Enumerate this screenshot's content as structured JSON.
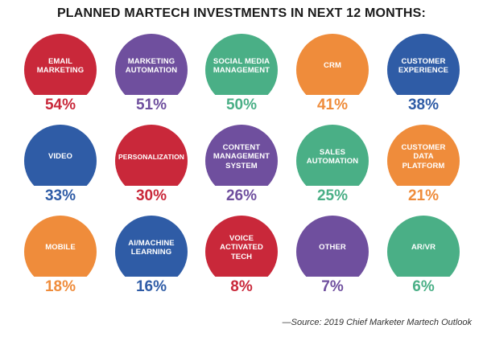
{
  "title": "PLANNED MARTECH INVESTMENTS IN NEXT 12 MONTHS:",
  "source": "—Source: 2019 Chief Marketer Martech Outlook",
  "colors": {
    "red": "#c9283a",
    "purple": "#6f4f9e",
    "green": "#4aaf86",
    "orange": "#ef8c3b",
    "blue": "#2f5ca6"
  },
  "items": [
    {
      "label": "EMAIL\nMARKETING",
      "percent": "54%",
      "color": "#c9283a"
    },
    {
      "label": "MARKETING\nAUTOMATION",
      "percent": "51%",
      "color": "#6f4f9e"
    },
    {
      "label": "SOCIAL MEDIA\nMANAGEMENT",
      "percent": "50%",
      "color": "#4aaf86"
    },
    {
      "label": "CRM",
      "percent": "41%",
      "color": "#ef8c3b"
    },
    {
      "label": "CUSTOMER\nEXPERIENCE",
      "percent": "38%",
      "color": "#2f5ca6"
    },
    {
      "label": "VIDEO",
      "percent": "33%",
      "color": "#2f5ca6"
    },
    {
      "label": "PERSONALIZATION",
      "percent": "30%",
      "color": "#c9283a"
    },
    {
      "label": "CONTENT\nMANAGEMENT\nSYSTEM",
      "percent": "26%",
      "color": "#6f4f9e"
    },
    {
      "label": "SALES\nAUTOMATION",
      "percent": "25%",
      "color": "#4aaf86"
    },
    {
      "label": "CUSTOMER\nDATA PLATFORM",
      "percent": "21%",
      "color": "#ef8c3b"
    },
    {
      "label": "MOBILE",
      "percent": "18%",
      "color": "#ef8c3b"
    },
    {
      "label": "AI/MACHINE\nLEARNING",
      "percent": "16%",
      "color": "#2f5ca6"
    },
    {
      "label": "VOICE\nACTIVATED\nTECH",
      "percent": "8%",
      "color": "#c9283a"
    },
    {
      "label": "OTHER",
      "percent": "7%",
      "color": "#6f4f9e"
    },
    {
      "label": "AR/VR",
      "percent": "6%",
      "color": "#4aaf86"
    }
  ]
}
